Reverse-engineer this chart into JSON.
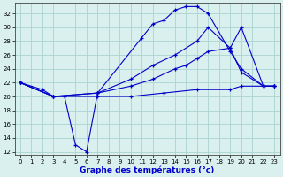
{
  "xlabel": "Graphe des températures (°c)",
  "xlim": [
    -0.5,
    23.5
  ],
  "ylim": [
    11.5,
    33.5
  ],
  "yticks": [
    12,
    14,
    16,
    18,
    20,
    22,
    24,
    26,
    28,
    30,
    32
  ],
  "xticks": [
    0,
    1,
    2,
    3,
    4,
    5,
    6,
    7,
    8,
    9,
    10,
    11,
    12,
    13,
    14,
    15,
    16,
    17,
    18,
    19,
    20,
    21,
    22,
    23
  ],
  "background_color": "#daf0ee",
  "grid_color": "#aad4d0",
  "line_color": "#0000cc",
  "line1_x": [
    0,
    2,
    3,
    4,
    5,
    6,
    7,
    11,
    12,
    13,
    14,
    15,
    16,
    17,
    19,
    20,
    22,
    23
  ],
  "line1_y": [
    22.0,
    21.0,
    20.0,
    20.0,
    13.0,
    12.0,
    20.5,
    28.5,
    30.5,
    31.0,
    32.5,
    33.0,
    33.0,
    32.0,
    26.5,
    24.0,
    21.5,
    21.5
  ],
  "line2_x": [
    0,
    3,
    7,
    10,
    12,
    14,
    16,
    17,
    19,
    20,
    22,
    23
  ],
  "line2_y": [
    22.0,
    20.0,
    20.5,
    22.5,
    24.5,
    26.0,
    28.0,
    30.0,
    27.0,
    30.0,
    21.5,
    21.5
  ],
  "line3_x": [
    0,
    3,
    7,
    10,
    12,
    14,
    15,
    16,
    17,
    19,
    20,
    22,
    23
  ],
  "line3_y": [
    22.0,
    20.0,
    20.5,
    21.5,
    22.5,
    24.0,
    24.5,
    25.5,
    26.5,
    27.0,
    23.5,
    21.5,
    21.5
  ],
  "line4_x": [
    0,
    3,
    7,
    10,
    13,
    16,
    19,
    20,
    22,
    23
  ],
  "line4_y": [
    22.0,
    20.0,
    20.0,
    20.0,
    20.5,
    21.0,
    21.0,
    21.5,
    21.5,
    21.5
  ]
}
